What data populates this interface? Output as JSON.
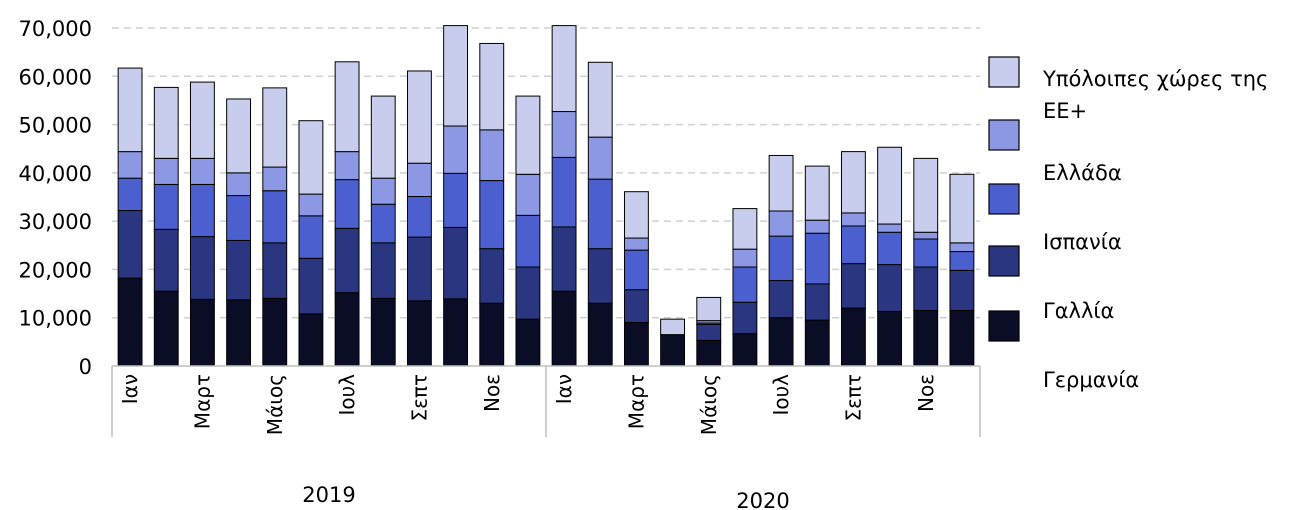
{
  "chart_data": {
    "type": "bar",
    "stacked": true,
    "categories": [
      "Ιαν",
      "",
      "Μαρτ",
      "",
      "Μάιος",
      "",
      "Ιουλ",
      "",
      "Σεπτ",
      "",
      "Νοε",
      "",
      "Ιαν",
      "",
      "Μαρτ",
      "",
      "Μάιος",
      "",
      "Ιουλ",
      "",
      "Σεπτ",
      "",
      "Νοε",
      ""
    ],
    "groups": [
      {
        "label": "2019",
        "start": 0,
        "end": 11
      },
      {
        "label": "2020",
        "start": 12,
        "end": 23
      }
    ],
    "series": [
      {
        "name": "Γερμανία",
        "color": "#0b0d26",
        "values": [
          18200,
          15500,
          13800,
          13700,
          14000,
          10800,
          15200,
          14000,
          13500,
          13900,
          13000,
          9700,
          15500,
          13000,
          9000,
          6500,
          5300,
          6700,
          10000,
          9500,
          12000,
          11300,
          11500,
          11500
        ]
      },
      {
        "name": "Γαλλία",
        "color": "#2a3680",
        "values": [
          14000,
          12800,
          13000,
          12300,
          11500,
          11500,
          13300,
          11500,
          13200,
          14800,
          11300,
          10800,
          13300,
          11300,
          6800,
          0,
          3300,
          6500,
          7700,
          7500,
          9200,
          9700,
          9000,
          8300
        ]
      },
      {
        "name": "Ισπανία",
        "color": "#4b5fcf",
        "values": [
          6700,
          9300,
          10800,
          9300,
          10800,
          8800,
          10100,
          8000,
          8400,
          11200,
          14100,
          10700,
          14400,
          14400,
          8200,
          0,
          300,
          7300,
          9200,
          10500,
          7800,
          6700,
          5800,
          3900
        ]
      },
      {
        "name": "Ελλάδα",
        "color": "#8c98e3",
        "values": [
          5500,
          5400,
          5400,
          4700,
          4900,
          4500,
          5800,
          5400,
          6900,
          9800,
          10500,
          8500,
          9500,
          8700,
          2500,
          0,
          500,
          3700,
          5200,
          2700,
          2700,
          1700,
          1400,
          1800
        ]
      },
      {
        "name": "Υπόλοιπες χώρες της ΕΕ+",
        "color": "#c8cdee",
        "values": [
          17300,
          14700,
          15800,
          15300,
          16400,
          15200,
          18600,
          17000,
          19100,
          20800,
          17900,
          16200,
          17800,
          15500,
          9600,
          3200,
          4800,
          8400,
          11500,
          11200,
          12700,
          15900,
          15300,
          14200
        ]
      }
    ],
    "yaxis": {
      "min": 0,
      "max": 70000,
      "ticks": [
        0,
        10000,
        20000,
        30000,
        40000,
        50000,
        60000,
        70000
      ],
      "tick_labels": [
        "0",
        "10,000",
        "20,000",
        "30,000",
        "40,000",
        "50,000",
        "60,000",
        "70,000"
      ]
    },
    "grid": true,
    "legend_position": "right",
    "legend_order": [
      "Υπόλοιπες χώρες της ΕΕ+",
      "Ελλάδα",
      "Ισπανία",
      "Γαλλία",
      "Γερμανία"
    ],
    "legend_lines": [
      [
        "Υπόλοιπες χώρες της",
        "ΕΕ+"
      ],
      [
        "Ελλάδα"
      ],
      [
        "Ισπανία"
      ],
      [
        "Γαλλία"
      ],
      [
        "Γερμανία"
      ]
    ],
    "title": "",
    "xlabel": "",
    "ylabel": ""
  }
}
